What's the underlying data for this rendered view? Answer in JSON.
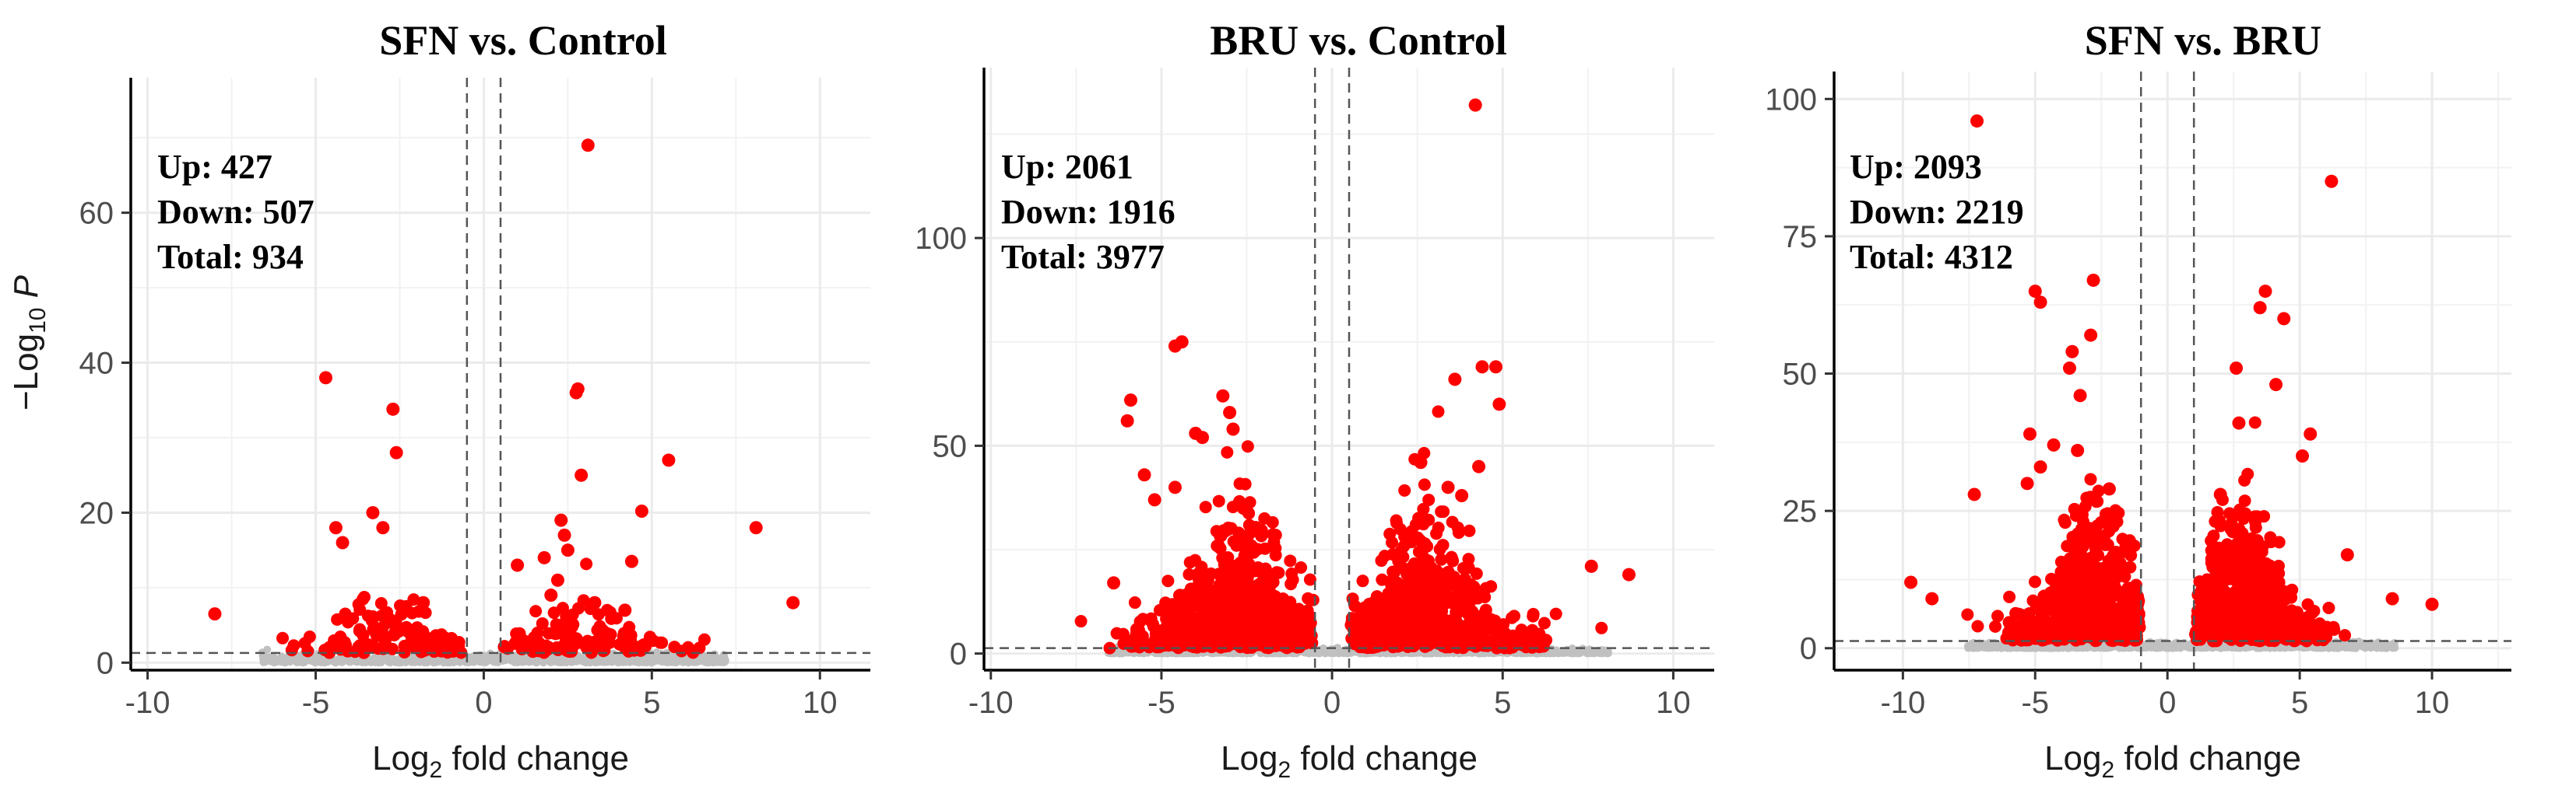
{
  "chart_data": [
    {
      "type": "scatter",
      "title": "SFN vs. Control",
      "xlabel": "fold change",
      "xlabel_prefix": "Log",
      "xlabel_sub": "2",
      "ylabel": "P",
      "ylabel_prefix": "−Log",
      "ylabel_sub": "10",
      "xlim": [
        -10.5,
        11.5
      ],
      "ylim": [
        -1,
        78
      ],
      "xticks": [
        -10,
        -5,
        0,
        5,
        10
      ],
      "xtick_labels": [
        "-10",
        "-5",
        "0",
        "5",
        "10"
      ],
      "yticks": [
        0,
        20,
        40,
        60
      ],
      "ytick_labels": [
        "0",
        "20",
        "40",
        "60"
      ],
      "grid": true,
      "fc_cutoff": [
        -0.5,
        0.5
      ],
      "p_cutoff": 1.3,
      "annotation": [
        "Up: 427",
        "Down: 507",
        "Total: 934"
      ],
      "series": [
        {
          "color": "#ff0000",
          "points": [
            [
              3.1,
              69
            ],
            [
              -4.7,
              38
            ],
            [
              -2.7,
              33.8
            ],
            [
              2.8,
              36.5
            ],
            [
              2.75,
              36
            ],
            [
              -2.6,
              28
            ],
            [
              5.5,
              27
            ],
            [
              2.9,
              25
            ],
            [
              4.7,
              20.2
            ],
            [
              -3.3,
              20
            ],
            [
              8.1,
              18
            ],
            [
              -3.0,
              18
            ],
            [
              2.3,
              19
            ],
            [
              2.4,
              17
            ],
            [
              -4.2,
              16
            ],
            [
              -4.4,
              18
            ],
            [
              2.5,
              15
            ],
            [
              1.8,
              14
            ],
            [
              1.0,
              13
            ],
            [
              4.4,
              13.5
            ],
            [
              9.2,
              8
            ],
            [
              -8.0,
              6.5
            ],
            [
              3.3,
              8
            ],
            [
              4.2,
              7
            ],
            [
              -1.8,
              8
            ],
            [
              2.2,
              11
            ],
            [
              2.0,
              9
            ]
          ]
        },
        {
          "color": "#c0c0c0",
          "points": [
            [
              -6.0,
              0.4
            ],
            [
              -4.0,
              0.5
            ],
            [
              -2.0,
              0.3
            ],
            [
              0,
              0.2
            ],
            [
              2.0,
              0.4
            ],
            [
              4.0,
              0.3
            ],
            [
              6.0,
              0.5
            ],
            [
              6.6,
              0.6
            ]
          ]
        }
      ]
    },
    {
      "type": "scatter",
      "title": "BRU vs. Control",
      "xlabel": "fold change",
      "xlabel_prefix": "Log",
      "xlabel_sub": "2",
      "ylabel": "",
      "ylabel_prefix": "",
      "ylabel_sub": "",
      "xlim": [
        -10.2,
        11.2
      ],
      "ylim": [
        -4,
        141
      ],
      "xticks": [
        -10,
        -5,
        0,
        5,
        10
      ],
      "xtick_labels": [
        "-10",
        "-5",
        "0",
        "5",
        "10"
      ],
      "yticks": [
        0,
        50,
        100
      ],
      "ytick_labels": [
        "0",
        "50",
        "100"
      ],
      "grid": true,
      "fc_cutoff": [
        -0.5,
        0.5
      ],
      "p_cutoff": 1.3,
      "annotation": [
        "Up: 2061",
        "Down: 1916",
        "Total: 3977"
      ],
      "series": [
        {
          "color": "#ff0000",
          "points": [
            [
              4.2,
              132
            ],
            [
              -4.4,
              75
            ],
            [
              -4.6,
              74
            ],
            [
              4.4,
              69
            ],
            [
              4.8,
              69
            ],
            [
              3.6,
              66
            ],
            [
              -3.2,
              62
            ],
            [
              -5.9,
              61
            ],
            [
              4.9,
              60
            ],
            [
              -3.0,
              58
            ],
            [
              -2.9,
              54
            ],
            [
              -4.0,
              53
            ],
            [
              -3.8,
              52
            ],
            [
              -6.0,
              56
            ],
            [
              2.6,
              46
            ],
            [
              4.3,
              45
            ],
            [
              3.4,
              40
            ],
            [
              -4.6,
              40
            ],
            [
              -5.5,
              43
            ],
            [
              -5.2,
              37
            ],
            [
              7.6,
              21
            ],
            [
              8.7,
              19
            ],
            [
              -6.4,
              17
            ],
            [
              2.2,
              27
            ],
            [
              -2.6,
              35
            ],
            [
              3.8,
              38
            ]
          ]
        },
        {
          "color": "#c0c0c0",
          "points": [
            [
              -6.0,
              0.6
            ],
            [
              -3.0,
              0.4
            ],
            [
              0,
              0.3
            ],
            [
              3.0,
              0.5
            ],
            [
              6.0,
              0.4
            ],
            [
              7.5,
              0.6
            ]
          ]
        }
      ]
    },
    {
      "type": "scatter",
      "title": "SFN vs. BRU",
      "xlabel": "fold change",
      "xlabel_prefix": "Log",
      "xlabel_sub": "2",
      "ylabel": "",
      "ylabel_prefix": "",
      "ylabel_sub": "",
      "xlim": [
        -12.6,
        13.0
      ],
      "ylim": [
        -4,
        105
      ],
      "xticks": [
        -10,
        -5,
        0,
        5,
        10
      ],
      "xtick_labels": [
        "-10",
        "-5",
        "0",
        "5",
        "10"
      ],
      "yticks": [
        0,
        25,
        50,
        75,
        100
      ],
      "ytick_labels": [
        "0",
        "25",
        "50",
        "75",
        "100"
      ],
      "grid": true,
      "fc_cutoff": [
        -1,
        1
      ],
      "p_cutoff": 1.3,
      "annotation": [
        "Up: 2093",
        "Down: 2219",
        "Total: 4312"
      ],
      "series": [
        {
          "color": "#ff0000",
          "points": [
            [
              -7.2,
              96
            ],
            [
              6.2,
              85
            ],
            [
              -2.8,
              67
            ],
            [
              -5.0,
              65
            ],
            [
              3.7,
              65
            ],
            [
              3.5,
              62
            ],
            [
              4.4,
              60
            ],
            [
              -4.8,
              63
            ],
            [
              -2.9,
              57
            ],
            [
              -3.6,
              54
            ],
            [
              -3.7,
              51
            ],
            [
              2.6,
              51
            ],
            [
              4.1,
              48
            ],
            [
              -3.3,
              46
            ],
            [
              2.7,
              41
            ],
            [
              -5.2,
              39
            ],
            [
              -4.3,
              37
            ],
            [
              -3.4,
              36
            ],
            [
              -4.8,
              33
            ],
            [
              5.4,
              39
            ],
            [
              5.1,
              35
            ],
            [
              -7.3,
              28
            ],
            [
              -5.3,
              30
            ],
            [
              -2.2,
              29
            ],
            [
              2.0,
              28
            ],
            [
              -9.7,
              12
            ],
            [
              -8.9,
              9
            ],
            [
              10.0,
              8
            ],
            [
              8.5,
              9
            ],
            [
              6.8,
              17
            ]
          ]
        },
        {
          "color": "#c0c0c0",
          "points": [
            [
              -7.0,
              0.5
            ],
            [
              -3.0,
              0.3
            ],
            [
              0,
              0.2
            ],
            [
              3.0,
              0.4
            ],
            [
              7.0,
              0.5
            ],
            [
              8.0,
              0.6
            ]
          ]
        }
      ]
    }
  ]
}
